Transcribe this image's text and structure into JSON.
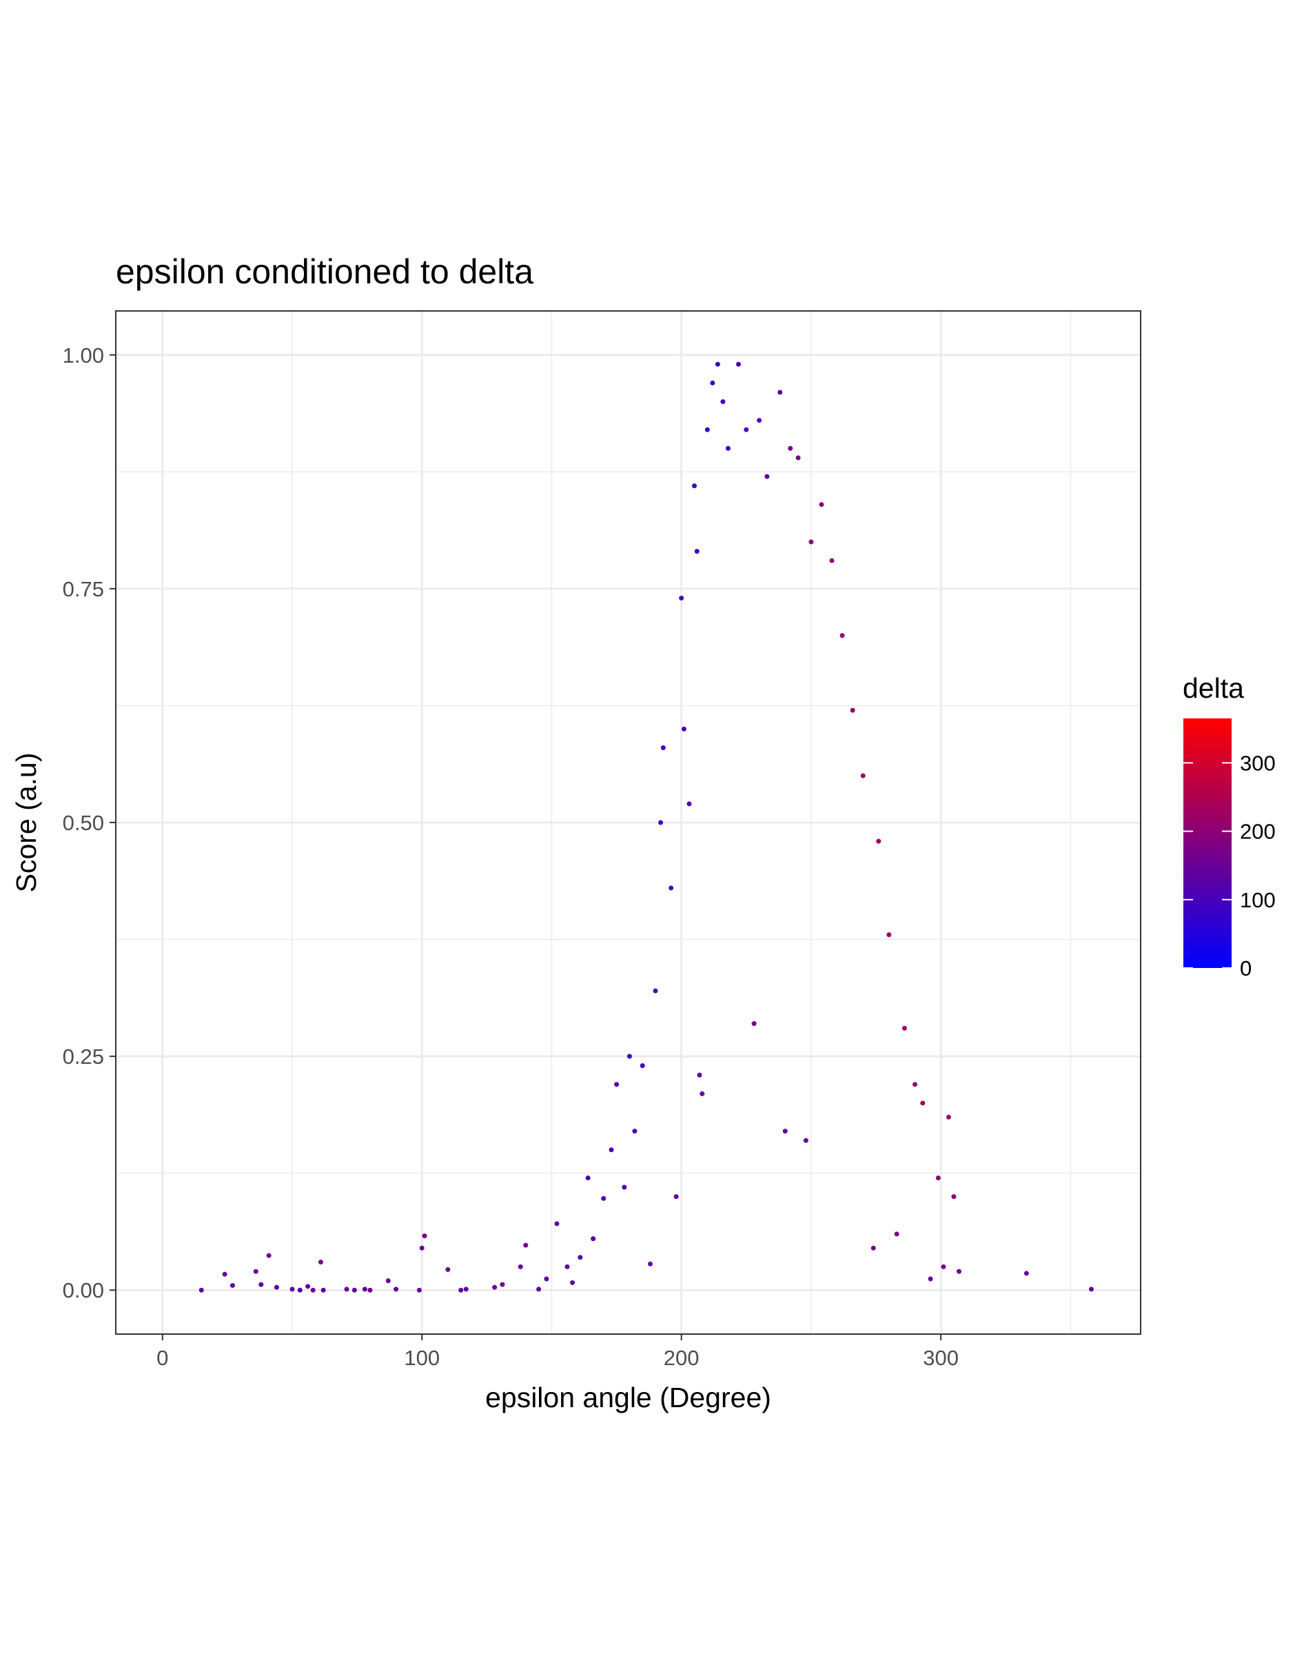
{
  "chart_data": {
    "type": "scatter",
    "title": "epsilon conditioned to delta",
    "xlabel": "epsilon angle (Degree)",
    "ylabel": "Score (a.u)",
    "xlim": [
      -18,
      377
    ],
    "ylim": [
      -0.047,
      1.047
    ],
    "x_ticks": [
      {
        "value": 0,
        "label": "0"
      },
      {
        "value": 100,
        "label": "100"
      },
      {
        "value": 200,
        "label": "200"
      },
      {
        "value": 300,
        "label": "300"
      }
    ],
    "y_ticks": [
      {
        "value": 0,
        "label": "0.00"
      },
      {
        "value": 0.25,
        "label": "0.25"
      },
      {
        "value": 0.5,
        "label": "0.50"
      },
      {
        "value": 0.75,
        "label": "0.75"
      },
      {
        "value": 1,
        "label": "1.00"
      }
    ],
    "x_minor_ticks": [
      50,
      150,
      250,
      350
    ],
    "y_minor_ticks": [
      0.125,
      0.375,
      0.625,
      0.875
    ],
    "grid": true,
    "legend": {
      "title": "delta",
      "placement": "right",
      "type": "colorbar",
      "range": [
        0,
        365
      ],
      "ticks": [
        {
          "value": 0,
          "label": "0"
        },
        {
          "value": 100,
          "label": "100"
        },
        {
          "value": 200,
          "label": "200"
        },
        {
          "value": 300,
          "label": "300"
        }
      ],
      "low_color": "#0000ff",
      "high_color": "#ff0000"
    },
    "point_color_mapping": "delta",
    "series": [
      {
        "points": [
          [
            15,
            0.0,
            130
          ],
          [
            24,
            0.017,
            140
          ],
          [
            27,
            0.005,
            135
          ],
          [
            36,
            0.02,
            150
          ],
          [
            38,
            0.006,
            130
          ],
          [
            41,
            0.037,
            160
          ],
          [
            44,
            0.003,
            120
          ],
          [
            50,
            0.001,
            140
          ],
          [
            53,
            0.0,
            110
          ],
          [
            56,
            0.004,
            130
          ],
          [
            58,
            0.0,
            160
          ],
          [
            61,
            0.03,
            170
          ],
          [
            62,
            0.0,
            120
          ],
          [
            71,
            0.001,
            150
          ],
          [
            74,
            0.0,
            140
          ],
          [
            78,
            0.001,
            135
          ],
          [
            80,
            0.0,
            150
          ],
          [
            87,
            0.01,
            160
          ],
          [
            90,
            0.001,
            130
          ],
          [
            99,
            0.0,
            150
          ],
          [
            100,
            0.045,
            140
          ],
          [
            101,
            0.058,
            170
          ],
          [
            110,
            0.022,
            150
          ],
          [
            115,
            0.0,
            130
          ],
          [
            117,
            0.001,
            140
          ],
          [
            128,
            0.003,
            135
          ],
          [
            131,
            0.006,
            145
          ],
          [
            138,
            0.025,
            150
          ],
          [
            140,
            0.048,
            160
          ],
          [
            145,
            0.001,
            140
          ],
          [
            148,
            0.012,
            130
          ],
          [
            152,
            0.071,
            120
          ],
          [
            156,
            0.025,
            135
          ],
          [
            158,
            0.008,
            140
          ],
          [
            161,
            0.035,
            115
          ],
          [
            164,
            0.12,
            110
          ],
          [
            166,
            0.055,
            120
          ],
          [
            170,
            0.098,
            110
          ],
          [
            173,
            0.15,
            105
          ],
          [
            175,
            0.22,
            100
          ],
          [
            178,
            0.11,
            110
          ],
          [
            180,
            0.25,
            95
          ],
          [
            182,
            0.17,
            100
          ],
          [
            185,
            0.24,
            95
          ],
          [
            188,
            0.028,
            140
          ],
          [
            190,
            0.32,
            100
          ],
          [
            192,
            0.5,
            90
          ],
          [
            193,
            0.58,
            95
          ],
          [
            196,
            0.43,
            100
          ],
          [
            198,
            0.1,
            150
          ],
          [
            200,
            0.74,
            90
          ],
          [
            201,
            0.6,
            100
          ],
          [
            203,
            0.52,
            110
          ],
          [
            205,
            0.86,
            85
          ],
          [
            206,
            0.79,
            90
          ],
          [
            207,
            0.23,
            140
          ],
          [
            208,
            0.21,
            150
          ],
          [
            210,
            0.92,
            85
          ],
          [
            212,
            0.97,
            85
          ],
          [
            214,
            0.99,
            85
          ],
          [
            216,
            0.95,
            90
          ],
          [
            218,
            0.9,
            95
          ],
          [
            222,
            0.99,
            100
          ],
          [
            225,
            0.92,
            110
          ],
          [
            228,
            0.285,
            170
          ],
          [
            230,
            0.93,
            110
          ],
          [
            233,
            0.87,
            130
          ],
          [
            238,
            0.96,
            120
          ],
          [
            240,
            0.17,
            140
          ],
          [
            242,
            0.9,
            160
          ],
          [
            245,
            0.89,
            170
          ],
          [
            248,
            0.16,
            150
          ],
          [
            250,
            0.8,
            180
          ],
          [
            254,
            0.84,
            190
          ],
          [
            258,
            0.78,
            200
          ],
          [
            262,
            0.7,
            210
          ],
          [
            266,
            0.62,
            220
          ],
          [
            270,
            0.55,
            220
          ],
          [
            274,
            0.045,
            160
          ],
          [
            276,
            0.48,
            220
          ],
          [
            280,
            0.38,
            230
          ],
          [
            283,
            0.06,
            170
          ],
          [
            286,
            0.28,
            230
          ],
          [
            290,
            0.22,
            220
          ],
          [
            293,
            0.2,
            230
          ],
          [
            296,
            0.012,
            150
          ],
          [
            299,
            0.12,
            200
          ],
          [
            301,
            0.025,
            170
          ],
          [
            303,
            0.185,
            210
          ],
          [
            305,
            0.1,
            200
          ],
          [
            307,
            0.02,
            160
          ],
          [
            333,
            0.018,
            150
          ],
          [
            358,
            0.001,
            140
          ]
        ]
      }
    ]
  }
}
